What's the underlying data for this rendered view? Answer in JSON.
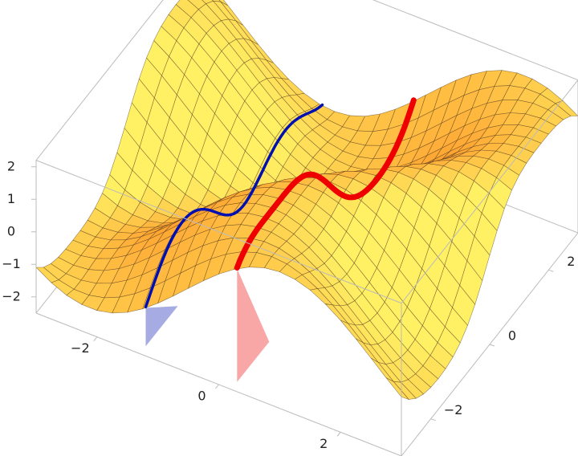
{
  "chart_data": {
    "type": "surface3d",
    "xlim": [
      -3,
      3
    ],
    "xticks": [
      {
        "value": -2,
        "label": "−2"
      },
      0,
      2
    ],
    "ylim": [
      -3,
      3
    ],
    "yticks": [
      {
        "value": -2,
        "label": "−2"
      },
      0,
      2
    ],
    "zlim": [
      -2.5,
      2.2
    ],
    "zticks": [
      {
        "value": -2,
        "label": "−2"
      },
      {
        "value": -1,
        "label": "−1"
      },
      0,
      1,
      2
    ]
  }
}
